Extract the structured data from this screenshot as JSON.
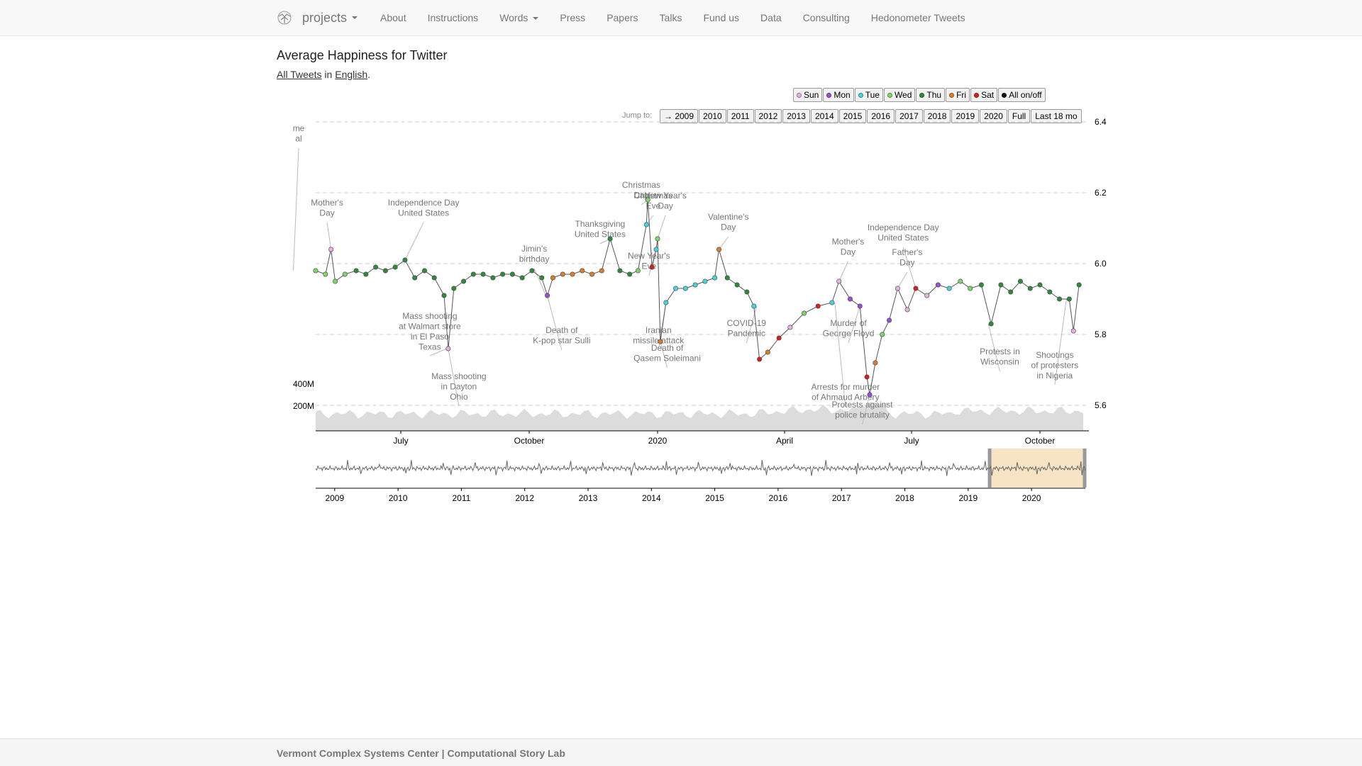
{
  "navbar": {
    "brand": "projects",
    "items": [
      {
        "label": "About"
      },
      {
        "label": "Instructions"
      },
      {
        "label": "Words",
        "dropdown": true
      },
      {
        "label": "Press"
      },
      {
        "label": "Papers"
      },
      {
        "label": "Talks"
      },
      {
        "label": "Fund us"
      },
      {
        "label": "Data"
      },
      {
        "label": "Consulting"
      },
      {
        "label": "Hedonometer Tweets"
      }
    ]
  },
  "page": {
    "title": "Average Happiness for Twitter",
    "subtitle_link1": "All Tweets",
    "subtitle_mid": " in ",
    "subtitle_link2": "English",
    "subtitle_end": "."
  },
  "day_legend": [
    {
      "label": "Sun",
      "color": "#e8b0e0"
    },
    {
      "label": "Mon",
      "color": "#9b4fd6"
    },
    {
      "label": "Tue",
      "color": "#46d4e0"
    },
    {
      "label": "Wed",
      "color": "#7ed66a"
    },
    {
      "label": "Thu",
      "color": "#2e8b3a"
    },
    {
      "label": "Fri",
      "color": "#e07b27"
    },
    {
      "label": "Sat",
      "color": "#d62020"
    },
    {
      "label": "All on/off",
      "color": "#111111"
    }
  ],
  "jump": {
    "label": "Jump to:",
    "buttons": [
      "→ 2009",
      "2010",
      "2011",
      "2012",
      "2013",
      "2014",
      "2015",
      "2016",
      "2017",
      "2018",
      "2019",
      "2020",
      "Full",
      "Last 18 mo"
    ]
  },
  "chart_data": {
    "type": "line",
    "x_start": "2019-05-01",
    "x_end": "2020-11-01",
    "ylim": [
      5.55,
      6.4
    ],
    "y_ticks": [
      "6.4",
      "6.2",
      "6.0",
      "5.8",
      "5.6"
    ],
    "x_ticks": [
      "July",
      "October",
      "2020",
      "April",
      "July",
      "October"
    ],
    "volume_ticks": [
      "400M",
      "200M"
    ],
    "series": [
      {
        "values": [
          [
            "2019-05-01",
            5.98
          ],
          [
            "2019-05-08",
            5.97
          ],
          [
            "2019-05-12",
            6.04
          ],
          [
            "2019-05-15",
            5.95
          ],
          [
            "2019-05-22",
            5.97
          ],
          [
            "2019-05-30",
            5.98
          ],
          [
            "2019-06-06",
            5.97
          ],
          [
            "2019-06-13",
            5.99
          ],
          [
            "2019-06-20",
            5.98
          ],
          [
            "2019-06-27",
            5.99
          ],
          [
            "2019-07-04",
            6.01
          ],
          [
            "2019-07-11",
            5.96
          ],
          [
            "2019-07-18",
            5.98
          ],
          [
            "2019-07-25",
            5.96
          ],
          [
            "2019-08-01",
            5.91
          ],
          [
            "2019-08-04",
            5.76
          ],
          [
            "2019-08-08",
            5.93
          ],
          [
            "2019-08-15",
            5.95
          ],
          [
            "2019-08-22",
            5.97
          ],
          [
            "2019-08-29",
            5.97
          ],
          [
            "2019-09-05",
            5.96
          ],
          [
            "2019-09-12",
            5.97
          ],
          [
            "2019-09-19",
            5.97
          ],
          [
            "2019-09-26",
            5.96
          ],
          [
            "2019-10-03",
            5.98
          ],
          [
            "2019-10-10",
            5.96
          ],
          [
            "2019-10-14",
            5.91
          ],
          [
            "2019-10-18",
            5.96
          ],
          [
            "2019-10-25",
            5.97
          ],
          [
            "2019-11-01",
            5.97
          ],
          [
            "2019-11-08",
            5.98
          ],
          [
            "2019-11-15",
            5.97
          ],
          [
            "2019-11-22",
            5.98
          ],
          [
            "2019-11-28",
            6.07
          ],
          [
            "2019-12-05",
            5.98
          ],
          [
            "2019-12-12",
            5.97
          ],
          [
            "2019-12-18",
            5.98
          ],
          [
            "2019-12-24",
            6.11
          ],
          [
            "2019-12-25",
            6.18
          ],
          [
            "2019-12-28",
            5.99
          ],
          [
            "2019-12-31",
            6.04
          ],
          [
            "2020-01-01",
            6.07
          ],
          [
            "2020-01-03",
            5.78
          ],
          [
            "2020-01-07",
            5.89
          ],
          [
            "2020-01-14",
            5.93
          ],
          [
            "2020-01-21",
            5.93
          ],
          [
            "2020-01-28",
            5.94
          ],
          [
            "2020-02-04",
            5.95
          ],
          [
            "2020-02-11",
            5.96
          ],
          [
            "2020-02-14",
            6.04
          ],
          [
            "2020-02-20",
            5.96
          ],
          [
            "2020-02-27",
            5.94
          ],
          [
            "2020-03-05",
            5.92
          ],
          [
            "2020-03-10",
            5.88
          ],
          [
            "2020-03-14",
            5.73
          ],
          [
            "2020-03-20",
            5.75
          ],
          [
            "2020-03-28",
            5.79
          ],
          [
            "2020-04-05",
            5.82
          ],
          [
            "2020-04-15",
            5.86
          ],
          [
            "2020-04-25",
            5.88
          ],
          [
            "2020-05-05",
            5.89
          ],
          [
            "2020-05-10",
            5.95
          ],
          [
            "2020-05-18",
            5.9
          ],
          [
            "2020-05-25",
            5.88
          ],
          [
            "2020-05-30",
            5.68
          ],
          [
            "2020-06-01",
            5.63
          ],
          [
            "2020-06-05",
            5.72
          ],
          [
            "2020-06-10",
            5.8
          ],
          [
            "2020-06-15",
            5.84
          ],
          [
            "2020-06-21",
            5.93
          ],
          [
            "2020-06-28",
            5.87
          ],
          [
            "2020-07-04",
            5.93
          ],
          [
            "2020-07-12",
            5.91
          ],
          [
            "2020-07-20",
            5.94
          ],
          [
            "2020-07-28",
            5.93
          ],
          [
            "2020-08-05",
            5.95
          ],
          [
            "2020-08-12",
            5.93
          ],
          [
            "2020-08-20",
            5.94
          ],
          [
            "2020-08-27",
            5.83
          ],
          [
            "2020-09-03",
            5.94
          ],
          [
            "2020-09-10",
            5.92
          ],
          [
            "2020-09-17",
            5.95
          ],
          [
            "2020-09-24",
            5.93
          ],
          [
            "2020-10-01",
            5.94
          ],
          [
            "2020-10-08",
            5.92
          ],
          [
            "2020-10-15",
            5.9
          ],
          [
            "2020-10-22",
            5.9
          ],
          [
            "2020-10-25",
            5.81
          ],
          [
            "2020-10-29",
            5.94
          ]
        ]
      }
    ],
    "annotations": [
      {
        "lines": [
          "Mother's",
          "Day"
        ],
        "date": "2019-05-12"
      },
      {
        "lines": [
          "Independence Day",
          "United States"
        ],
        "date": "2019-07-04"
      },
      {
        "lines": [
          "Mass shooting",
          "at Walmart store",
          "in El Paso",
          "Texas"
        ],
        "date": "2019-08-03"
      },
      {
        "lines": [
          "Mass shooting",
          "in Dayton",
          "Ohio"
        ],
        "date": "2019-08-04"
      },
      {
        "lines": [
          "Jimin's",
          "birthday"
        ],
        "date": "2019-10-13"
      },
      {
        "lines": [
          "Death of",
          "K-pop star Sulli"
        ],
        "date": "2019-10-14"
      },
      {
        "lines": [
          "Thanksgiving",
          "United States"
        ],
        "date": "2019-11-28"
      },
      {
        "lines": [
          "Christmas",
          "Eve"
        ],
        "date": "2019-12-24"
      },
      {
        "lines": [
          "Christmas",
          "Day"
        ],
        "date": "2019-12-25"
      },
      {
        "lines": [
          "New Year's",
          "Day"
        ],
        "date": "2020-01-01"
      },
      {
        "lines": [
          "New Year's",
          "Eve"
        ],
        "date": "2019-12-31"
      },
      {
        "lines": [
          "Death of",
          "Qasem Soleimani"
        ],
        "date": "2020-01-03"
      },
      {
        "lines": [
          "Iranian",
          "missile attack"
        ],
        "date": "2020-01-07"
      },
      {
        "lines": [
          "Valentine's",
          "Day"
        ],
        "date": "2020-02-14"
      },
      {
        "lines": [
          "COVID-19",
          "Pandemic"
        ],
        "date": "2020-03-12"
      },
      {
        "lines": [
          "Mother's",
          "Day"
        ],
        "date": "2020-05-10"
      },
      {
        "lines": [
          "Murder of",
          "George Floyd"
        ],
        "date": "2020-05-25"
      },
      {
        "lines": [
          "Arrests for murder",
          "of Ahmaud Arbery"
        ],
        "date": "2020-05-07"
      },
      {
        "lines": [
          "Protests against",
          "police brutality"
        ],
        "date": "2020-06-01"
      },
      {
        "lines": [
          "Father's",
          "Day"
        ],
        "date": "2020-06-21"
      },
      {
        "lines": [
          "Independence Day",
          "United States"
        ],
        "date": "2020-07-04"
      },
      {
        "lines": [
          "Protests in",
          "Wisconsin"
        ],
        "date": "2020-08-25"
      },
      {
        "lines": [
          "Shootings",
          "of protesters",
          "in Nigeria"
        ],
        "date": "2020-10-20"
      },
      {
        "lines": [
          "me",
          "al"
        ],
        "date": "2019-04-15"
      }
    ],
    "overview": {
      "x_ticks": [
        "2009",
        "2010",
        "2011",
        "2012",
        "2013",
        "2014",
        "2015",
        "2016",
        "2017",
        "2018",
        "2019",
        "2020"
      ],
      "selection": [
        "2019-05-01",
        "2020-11-01"
      ]
    }
  },
  "footer": {
    "text": "Vermont Complex Systems Center | Computational Story Lab"
  }
}
